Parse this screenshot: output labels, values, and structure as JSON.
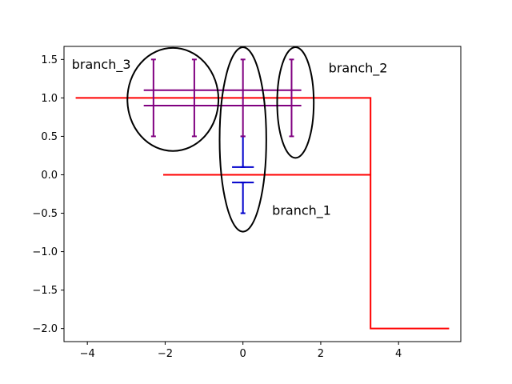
{
  "chart_data": {
    "type": "line",
    "xlim": [
      -4.6,
      5.6
    ],
    "ylim": [
      -2.17,
      1.67
    ],
    "x_ticks": [
      -4,
      -2,
      0,
      2,
      4
    ],
    "y_ticks": [
      -2.0,
      -1.5,
      -1.0,
      -0.5,
      0.0,
      0.5,
      1.0,
      1.5
    ],
    "x_tick_labels": [
      "−4",
      "−2",
      "0",
      "2",
      "4"
    ],
    "y_tick_labels": [
      "−2.0",
      "−1.5",
      "−1.0",
      "−0.5",
      "0.0",
      "0.5",
      "1.0",
      "1.5"
    ],
    "grid": false,
    "lines": [
      {
        "color": "#ff0000",
        "points": [
          [
            -4.3,
            1.0
          ],
          [
            3.28,
            1.0
          ],
          [
            3.28,
            -2.0
          ],
          [
            5.3,
            -2.0
          ]
        ]
      },
      {
        "color": "#ff0000",
        "points": [
          [
            -2.05,
            0.0
          ],
          [
            3.28,
            0.0
          ]
        ]
      }
    ],
    "error_bars": [
      {
        "color": "#0000cc",
        "x": 0.0,
        "y_low": 0.1,
        "y_high": 0.5
      },
      {
        "color": "#0000cc",
        "x": 0.0,
        "y_low": -0.5,
        "y_high": -0.1
      },
      {
        "color": "#800080",
        "x": -2.3,
        "y_low": 0.5,
        "y_high": 1.5
      },
      {
        "color": "#800080",
        "x": -1.25,
        "y_low": 0.5,
        "y_high": 1.5
      },
      {
        "color": "#800080",
        "x": 0.0,
        "y_low": 0.5,
        "y_high": 1.5
      },
      {
        "color": "#800080",
        "x": 1.25,
        "y_low": 0.5,
        "y_high": 1.5
      }
    ],
    "hlines": [
      {
        "color": "#0000cc",
        "y": 0.1,
        "x_min": -0.28,
        "x_max": 0.28
      },
      {
        "color": "#0000cc",
        "y": -0.1,
        "x_min": -0.28,
        "x_max": 0.28
      },
      {
        "color": "#800080",
        "y": 1.1,
        "x_min": -2.55,
        "x_max": 1.5
      },
      {
        "color": "#800080",
        "y": 0.9,
        "x_min": -2.55,
        "x_max": 1.5
      }
    ],
    "ellipses": [
      {
        "name": "branch_3",
        "color": "#000000",
        "cx": -1.8,
        "cy": 0.98,
        "rx": 1.17,
        "ry": 0.67
      },
      {
        "name": "branch_1",
        "color": "#000000",
        "cx": 0.0,
        "cy": 0.46,
        "rx": 0.6,
        "ry": 1.2
      },
      {
        "name": "branch_2",
        "color": "#000000",
        "cx": 1.35,
        "cy": 0.94,
        "rx": 0.47,
        "ry": 0.72
      }
    ],
    "annotations": [
      {
        "text": "branch_3",
        "x": -4.4,
        "y": 1.38
      },
      {
        "text": "branch_2",
        "x": 2.2,
        "y": 1.33
      },
      {
        "text": "branch_1",
        "x": 0.75,
        "y": -0.52
      }
    ]
  }
}
